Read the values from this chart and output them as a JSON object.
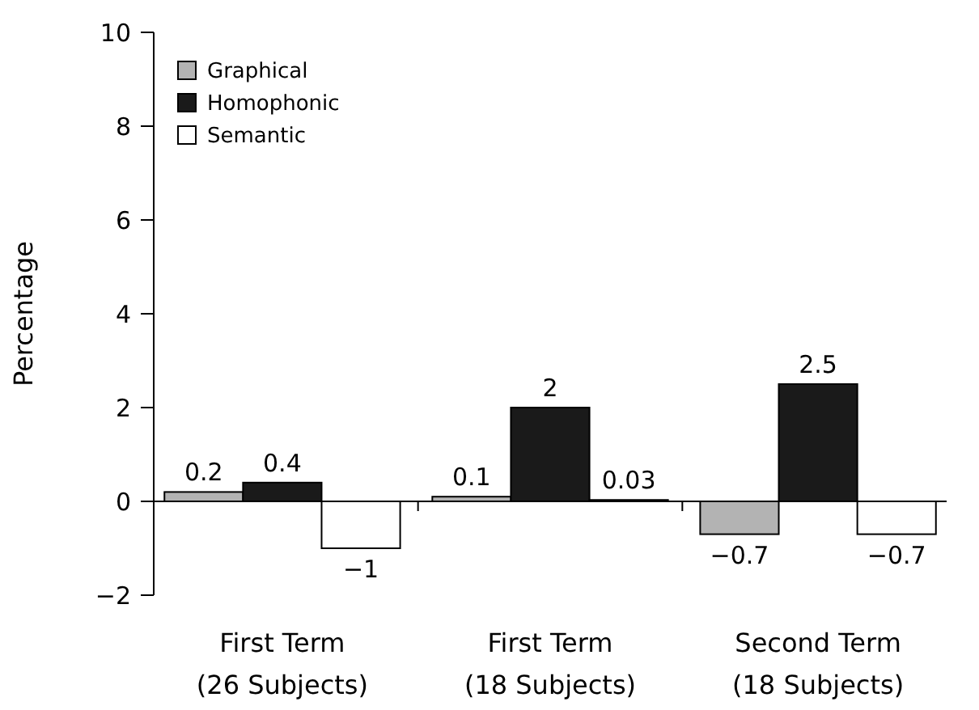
{
  "chart_data": {
    "type": "bar",
    "ylabel": "Percentage",
    "categories": [
      "First Term\n(26 Subjects)",
      "First Term\n(18 Subjects)",
      "Second Term\n(18 Subjects)"
    ],
    "series": [
      {
        "name": "Graphical",
        "color": "#b3b3b3",
        "values": [
          0.2,
          0.1,
          -0.7
        ],
        "value_labels": [
          "0.2",
          "0.1",
          "−0.7"
        ]
      },
      {
        "name": "Homophonic",
        "color": "#1a1a1a",
        "values": [
          0.4,
          2,
          2.5
        ],
        "value_labels": [
          "0.4",
          "2",
          "2.5"
        ]
      },
      {
        "name": "Semantic",
        "color": "#ffffff",
        "values": [
          -1,
          0.03,
          -0.7
        ],
        "value_labels": [
          "−1",
          "0.03",
          "−0.7"
        ]
      }
    ],
    "ylim": [
      -2,
      10
    ],
    "yticks": [
      {
        "value": -2,
        "label": "−2"
      },
      0,
      2,
      4,
      6,
      8,
      10
    ],
    "legend": "top left"
  }
}
